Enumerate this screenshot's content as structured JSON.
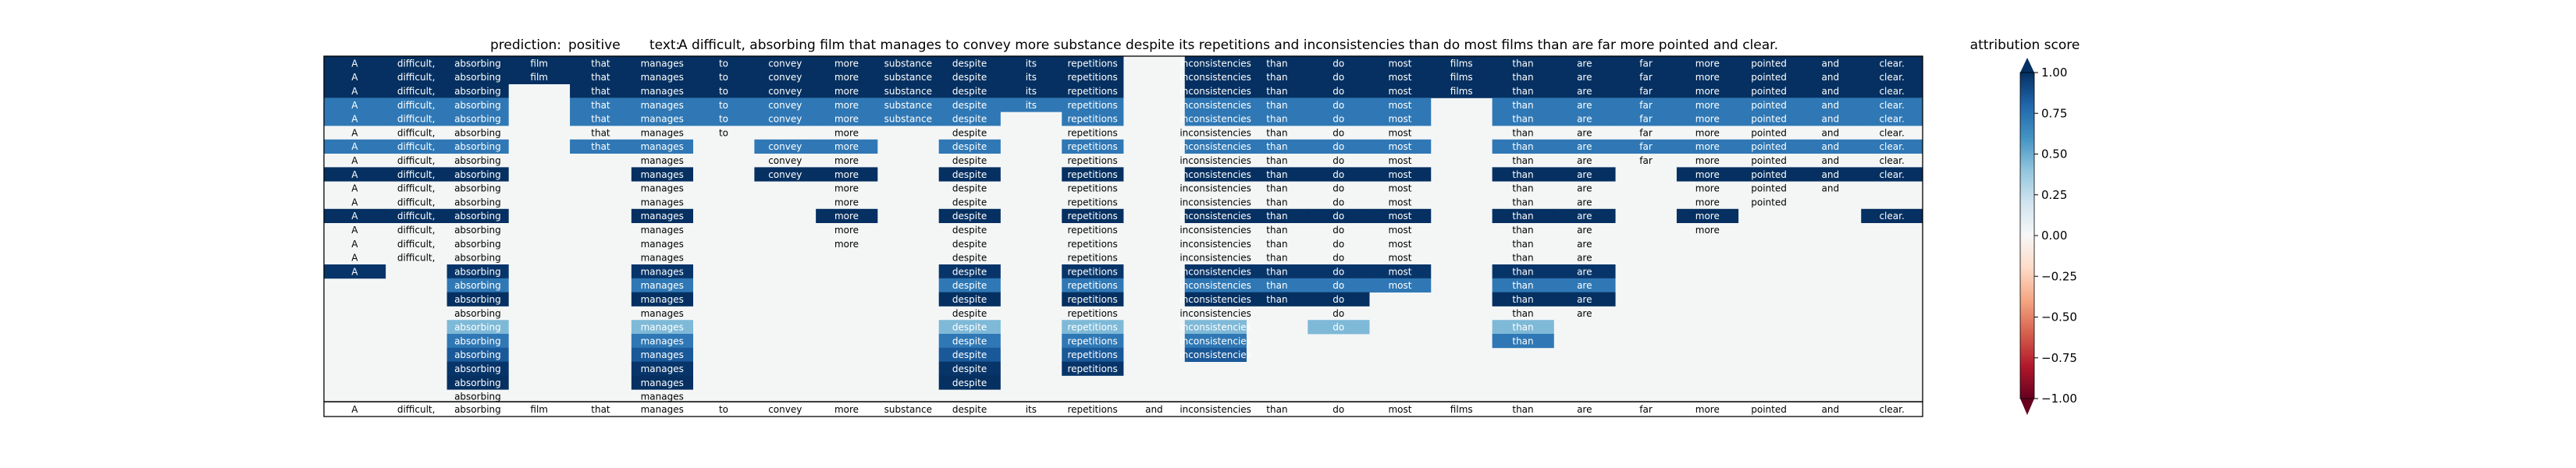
{
  "chart_data": {
    "type": "heatmap",
    "title": {
      "prediction_label": "prediction:",
      "prediction_value": "positive",
      "text_label": "text:",
      "text_value": "A difficult, absorbing film that manages to convey more substance despite its repetitions and inconsistencies than do most films than are far more pointed and clear."
    },
    "tokens": [
      "A",
      "difficult,",
      "absorbing",
      "film",
      "that",
      "manages",
      "to",
      "convey",
      "more",
      "substance",
      "despite",
      "its",
      "repetitions",
      "and",
      "inconsistencies",
      "than",
      "do",
      "most",
      "films",
      "than",
      "are",
      "far",
      "more",
      "pointed",
      "and",
      "clear."
    ],
    "rows": [
      {
        "t": [
          0,
          1,
          2,
          3,
          4,
          5,
          6,
          7,
          8,
          9,
          10,
          11,
          12,
          14,
          15,
          16,
          17,
          18,
          19,
          20,
          21,
          22,
          23,
          24,
          25
        ],
        "v": [
          1,
          1,
          1,
          1,
          1,
          1,
          1,
          1,
          1,
          1,
          1,
          1,
          1,
          1,
          1,
          1,
          1,
          1,
          1,
          1,
          1,
          1,
          1,
          1,
          1
        ]
      },
      {
        "t": [
          0,
          1,
          2,
          3,
          4,
          5,
          6,
          7,
          8,
          9,
          10,
          11,
          12,
          14,
          15,
          16,
          17,
          18,
          19,
          20,
          21,
          22,
          23,
          24,
          25
        ],
        "v": [
          1,
          1,
          1,
          1,
          1,
          1,
          1,
          1,
          1,
          1,
          1,
          1,
          1,
          1,
          1,
          1,
          1,
          1,
          1,
          1,
          1,
          1,
          1,
          1,
          1
        ]
      },
      {
        "t": [
          0,
          1,
          2,
          4,
          5,
          6,
          7,
          8,
          9,
          10,
          11,
          12,
          14,
          15,
          16,
          17,
          18,
          19,
          20,
          21,
          22,
          23,
          24,
          25
        ],
        "v": [
          1,
          1,
          1,
          1,
          1,
          1,
          1,
          1,
          1,
          1,
          1,
          1,
          1,
          1,
          1,
          1,
          1,
          1,
          1,
          1,
          1,
          1,
          1,
          1
        ]
      },
      {
        "t": [
          0,
          1,
          2,
          4,
          5,
          6,
          7,
          8,
          9,
          10,
          11,
          12,
          14,
          15,
          16,
          17,
          19,
          20,
          21,
          22,
          23,
          24,
          25
        ],
        "v": [
          0.72,
          0.72,
          0.72,
          0.72,
          0.72,
          0.72,
          0.72,
          0.72,
          0.72,
          0.72,
          0.72,
          0.72,
          0.72,
          0.72,
          0.72,
          0.72,
          0.72,
          0.72,
          0.72,
          0.72,
          0.72,
          0.72,
          0.72
        ]
      },
      {
        "t": [
          0,
          1,
          2,
          4,
          5,
          6,
          7,
          8,
          9,
          10,
          12,
          14,
          15,
          16,
          17,
          19,
          20,
          21,
          22,
          23,
          24,
          25
        ],
        "v": [
          0.72,
          0.72,
          0.72,
          0.72,
          0.72,
          0.72,
          0.72,
          0.72,
          0.72,
          0.72,
          0.72,
          0.72,
          0.72,
          0.72,
          0.72,
          0.72,
          0.72,
          0.72,
          0.72,
          0.72,
          0.72,
          0.72
        ]
      },
      {
        "t": [
          0,
          1,
          2,
          4,
          5,
          6,
          8,
          10,
          12,
          14,
          15,
          16,
          17,
          19,
          20,
          21,
          22,
          23,
          24,
          25
        ],
        "v": [
          0,
          0,
          0,
          0,
          0,
          0,
          0,
          0,
          0,
          0,
          0,
          0,
          0,
          0,
          0,
          0,
          0,
          0,
          0,
          0
        ]
      },
      {
        "t": [
          0,
          1,
          2,
          4,
          5,
          7,
          8,
          10,
          12,
          14,
          15,
          16,
          17,
          19,
          20,
          21,
          22,
          23,
          24,
          25
        ],
        "v": [
          0.72,
          0.72,
          0.72,
          0.72,
          0.72,
          0.72,
          0.72,
          0.72,
          0.72,
          0.72,
          0.72,
          0.72,
          0.72,
          0.72,
          0.72,
          0.72,
          0.72,
          0.72,
          0.72,
          0.72
        ]
      },
      {
        "t": [
          0,
          1,
          2,
          5,
          7,
          8,
          10,
          12,
          14,
          15,
          16,
          17,
          19,
          20,
          21,
          22,
          23,
          24,
          25
        ],
        "v": [
          0,
          0,
          0,
          0,
          0,
          0,
          0,
          0,
          0,
          0,
          0,
          0,
          0,
          0,
          0,
          0,
          0,
          0,
          0
        ]
      },
      {
        "t": [
          0,
          1,
          2,
          5,
          7,
          8,
          10,
          12,
          14,
          15,
          16,
          17,
          19,
          20,
          22,
          23,
          24,
          25
        ],
        "v": [
          1,
          1,
          1,
          1,
          1,
          1,
          1,
          1,
          1,
          1,
          1,
          1,
          1,
          1,
          1,
          1,
          1,
          1
        ]
      },
      {
        "t": [
          0,
          1,
          2,
          5,
          8,
          10,
          12,
          14,
          15,
          16,
          17,
          19,
          20,
          22,
          23,
          24
        ],
        "v": [
          0,
          0,
          0,
          0,
          0,
          0,
          0,
          0,
          0,
          0,
          0,
          0,
          0,
          0,
          0,
          0
        ]
      },
      {
        "t": [
          0,
          1,
          2,
          5,
          8,
          10,
          12,
          14,
          15,
          16,
          17,
          19,
          20,
          22,
          23
        ],
        "v": [
          0,
          0,
          0,
          0,
          0,
          0,
          0,
          0,
          0,
          0,
          0,
          0,
          0,
          0,
          0
        ]
      },
      {
        "t": [
          0,
          1,
          2,
          5,
          8,
          10,
          12,
          14,
          15,
          16,
          17,
          19,
          20,
          22,
          25
        ],
        "v": [
          1,
          1,
          1,
          1,
          1,
          1,
          1,
          1,
          1,
          1,
          1,
          1,
          1,
          1,
          1
        ]
      },
      {
        "t": [
          0,
          1,
          2,
          5,
          8,
          10,
          12,
          14,
          15,
          16,
          17,
          19,
          20,
          22
        ],
        "v": [
          0,
          0,
          0,
          0,
          0,
          0,
          0,
          0,
          0,
          0,
          0,
          0,
          0,
          0
        ]
      },
      {
        "t": [
          0,
          1,
          2,
          5,
          8,
          10,
          12,
          14,
          15,
          16,
          17,
          19,
          20
        ],
        "v": [
          0,
          0,
          0,
          0,
          0,
          0,
          0,
          0,
          0,
          0,
          0,
          0,
          0
        ]
      },
      {
        "t": [
          0,
          1,
          2,
          5,
          10,
          12,
          14,
          15,
          16,
          17,
          19,
          20
        ],
        "v": [
          0,
          0,
          0,
          0,
          0,
          0,
          0,
          0,
          0,
          0,
          0,
          0
        ]
      },
      {
        "t": [
          0,
          2,
          5,
          10,
          12,
          14,
          15,
          16,
          17,
          19,
          20
        ],
        "v": [
          0.98,
          0.98,
          0.98,
          0.98,
          0.98,
          0.98,
          0.98,
          0.98,
          0.98,
          0.98,
          0.98
        ]
      },
      {
        "t": [
          2,
          5,
          10,
          12,
          14,
          15,
          16,
          17,
          19,
          20
        ],
        "v": [
          0.72,
          0.72,
          0.72,
          0.72,
          0.72,
          0.72,
          0.72,
          0.72,
          0.72,
          0.72
        ]
      },
      {
        "t": [
          2,
          5,
          10,
          12,
          14,
          15,
          16,
          19,
          20
        ],
        "v": [
          1,
          1,
          1,
          1,
          1,
          1,
          1,
          1,
          1
        ]
      },
      {
        "t": [
          2,
          5,
          10,
          12,
          14,
          16,
          19,
          20
        ],
        "v": [
          0,
          0,
          0,
          0,
          0,
          0,
          0,
          0
        ]
      },
      {
        "t": [
          2,
          5,
          10,
          12,
          14,
          16,
          19
        ],
        "v": [
          0.45,
          0.45,
          0.45,
          0.45,
          0.45,
          0.45,
          0.45
        ]
      },
      {
        "t": [
          2,
          5,
          10,
          12,
          14,
          19
        ],
        "v": [
          0.72,
          0.72,
          0.72,
          0.72,
          0.72,
          0.72
        ]
      },
      {
        "t": [
          2,
          5,
          10,
          12,
          14
        ],
        "v": [
          0.85,
          0.85,
          0.85,
          0.85,
          0.85
        ]
      },
      {
        "t": [
          2,
          5,
          10,
          12
        ],
        "v": [
          0.98,
          0.98,
          0.98,
          0.98
        ]
      },
      {
        "t": [
          2,
          5,
          10
        ],
        "v": [
          1,
          1,
          1
        ]
      },
      {
        "t": [
          2,
          5
        ],
        "v": [
          0,
          0
        ]
      }
    ],
    "colorbar": {
      "label": "attribution score",
      "range": [
        -1.0,
        1.0
      ],
      "ticks": [
        1.0,
        0.75,
        0.5,
        0.25,
        0.0,
        -0.25,
        -0.5,
        -0.75,
        -1.0
      ],
      "tick_labels": [
        "1.00",
        "0.75",
        "0.50",
        "0.25",
        "0.00",
        "−0.25",
        "−0.50",
        "−0.75",
        "−1.00"
      ],
      "colormap": "RdBu"
    }
  }
}
